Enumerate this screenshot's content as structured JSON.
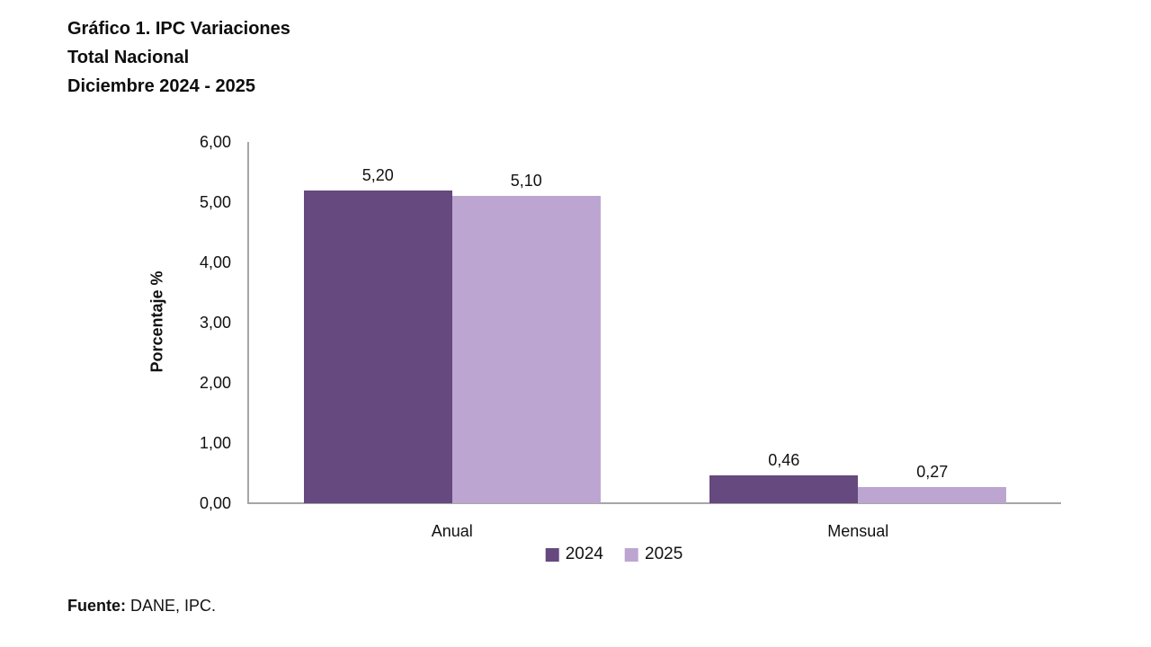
{
  "title": {
    "line1": "Gráfico 1. IPC Variaciones",
    "line2": "Total Nacional",
    "line3": "Diciembre 2024 - 2025"
  },
  "chart_data": {
    "type": "bar",
    "categories": [
      "Anual",
      "Mensual"
    ],
    "series": [
      {
        "name": "2024",
        "color": "#65497F",
        "values": [
          5.2,
          0.46
        ],
        "value_labels": [
          "5,20",
          "0,46"
        ]
      },
      {
        "name": "2025",
        "color": "#BCA6D1",
        "values": [
          5.1,
          0.27
        ],
        "value_labels": [
          "5,10",
          "0,27"
        ]
      }
    ],
    "title": "Gráfico 1. IPC Variaciones Total Nacional Diciembre 2024 - 2025",
    "xlabel": "",
    "ylabel": "Porcentaje %",
    "ylim": [
      0,
      6
    ],
    "yticks": [
      {
        "value": 0,
        "label": "0,00"
      },
      {
        "value": 1,
        "label": "1,00"
      },
      {
        "value": 2,
        "label": "2,00"
      },
      {
        "value": 3,
        "label": "3,00"
      },
      {
        "value": 4,
        "label": "4,00"
      },
      {
        "value": 5,
        "label": "5,00"
      },
      {
        "value": 6,
        "label": "6,00"
      }
    ],
    "grid": false,
    "legend_position": "bottom",
    "axis_color": "#A6A6A6"
  },
  "footer": {
    "source_label": "Fuente:",
    "source_text": " DANE, IPC."
  }
}
